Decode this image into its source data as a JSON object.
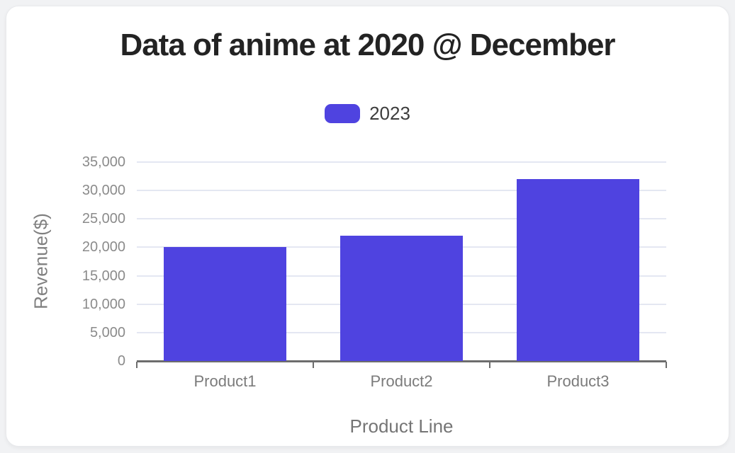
{
  "page": {
    "background_color": "#f1f2f4",
    "card_color": "#ffffff"
  },
  "legend": {
    "items": [
      {
        "label": "2023",
        "color": "#4F43E0"
      }
    ]
  },
  "chart_data": {
    "type": "bar",
    "title": "Data of anime at 2020 @ December",
    "categories": [
      "Product1",
      "Product2",
      "Product3"
    ],
    "series": [
      {
        "name": "2023",
        "values": [
          20000,
          22000,
          32000
        ],
        "color": "#4F43E0"
      }
    ],
    "xlabel": "Product Line",
    "ylabel": "Revenue($)",
    "ylim": [
      0,
      35000
    ],
    "ytick_step": 5000,
    "ytick_labels": [
      "0",
      "5,000",
      "10,000",
      "15,000",
      "20,000",
      "25,000",
      "30,000",
      "35,000"
    ],
    "grid": true,
    "legend_position": "top",
    "bar_width_ratio": 0.695,
    "gridline_color": "#e4e7f2",
    "axis_color": "#6d6d6d"
  }
}
